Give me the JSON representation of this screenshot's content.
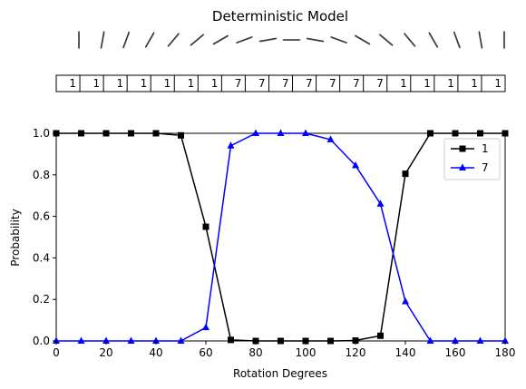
{
  "chart_data": {
    "title": "Deterministic Model",
    "type": "line",
    "xlabel": "Rotation Degrees",
    "ylabel": "Probability",
    "xlim": [
      0,
      180
    ],
    "ylim": [
      0,
      1
    ],
    "xticks": [
      "0",
      "20",
      "40",
      "60",
      "80",
      "100",
      "120",
      "140",
      "160",
      "180"
    ],
    "yticks": [
      "0.0",
      "0.2",
      "0.4",
      "0.6",
      "0.8",
      "1.0"
    ],
    "x": [
      0,
      10,
      20,
      30,
      40,
      50,
      60,
      70,
      80,
      90,
      100,
      110,
      120,
      130,
      140,
      150,
      160,
      170,
      180
    ],
    "predictions": [
      "1",
      "1",
      "1",
      "1",
      "1",
      "1",
      "1",
      "7",
      "7",
      "7",
      "7",
      "7",
      "7",
      "7",
      "1",
      "1",
      "1",
      "1",
      "1"
    ],
    "series": [
      {
        "name": "1",
        "color": "#000000",
        "marker": "square",
        "values": [
          1.0,
          1.0,
          1.0,
          1.0,
          1.0,
          0.99,
          0.55,
          0.005,
          0.0,
          0.0,
          0.0,
          0.0,
          0.002,
          0.025,
          0.805,
          1.0,
          1.0,
          1.0,
          1.0
        ]
      },
      {
        "name": "7",
        "color": "#0000ff",
        "marker": "triangle",
        "values": [
          0.0,
          0.0,
          0.0,
          0.0,
          0.0,
          0.0,
          0.065,
          0.94,
          1.0,
          1.0,
          1.0,
          0.97,
          0.845,
          0.66,
          0.19,
          0.0,
          0.0,
          0.0,
          0.0
        ]
      }
    ],
    "legend_position": "top-right",
    "grid": false
  }
}
